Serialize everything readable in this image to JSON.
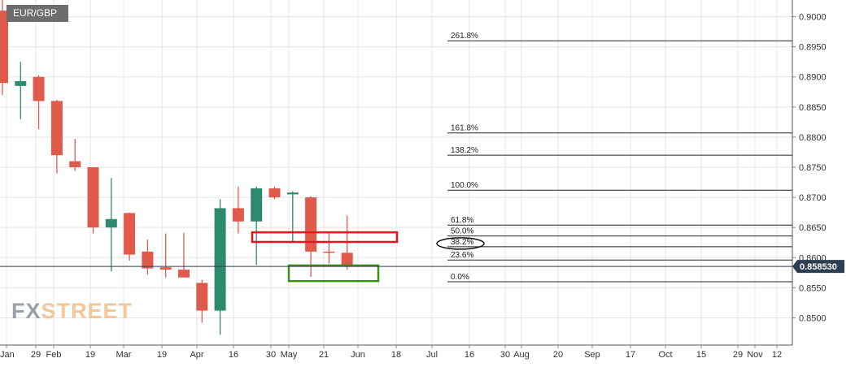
{
  "chart_data": {
    "type": "candlestick",
    "symbol": "EUR/GBP",
    "y_axis": {
      "min": 0.8475,
      "max": 0.9025,
      "ticks": [
        "0.9000",
        "0.8950",
        "0.8900",
        "0.8850",
        "0.8800",
        "0.8750",
        "0.8700",
        "0.8650",
        "0.8600",
        "0.8550",
        "0.8500"
      ],
      "position": "right"
    },
    "x_axis_labels": [
      "Jan",
      "29",
      "Feb",
      "19",
      "Mar",
      "19",
      "Apr",
      "16",
      "30",
      "May",
      "21",
      "Jun",
      "18",
      "Jul",
      "16",
      "30",
      "Aug",
      "20",
      "Sep",
      "17",
      "Oct",
      "15",
      "29",
      "Nov",
      "12"
    ],
    "current_price": "0.858530",
    "candles": [
      {
        "open": 0.901,
        "high": 0.903,
        "low": 0.887,
        "close": 0.889
      },
      {
        "open": 0.8885,
        "high": 0.8925,
        "low": 0.883,
        "close": 0.8893
      },
      {
        "open": 0.89,
        "high": 0.8903,
        "low": 0.8813,
        "close": 0.886
      },
      {
        "open": 0.886,
        "high": 0.8862,
        "low": 0.874,
        "close": 0.877
      },
      {
        "open": 0.876,
        "high": 0.8797,
        "low": 0.8744,
        "close": 0.875
      },
      {
        "open": 0.875,
        "high": 0.875,
        "low": 0.864,
        "close": 0.865
      },
      {
        "open": 0.865,
        "high": 0.8732,
        "low": 0.8577,
        "close": 0.8664
      },
      {
        "open": 0.8674,
        "high": 0.8675,
        "low": 0.8595,
        "close": 0.8605
      },
      {
        "open": 0.861,
        "high": 0.863,
        "low": 0.8572,
        "close": 0.8582
      },
      {
        "open": 0.8584,
        "high": 0.864,
        "low": 0.8567,
        "close": 0.858
      },
      {
        "open": 0.858,
        "high": 0.8641,
        "low": 0.8567,
        "close": 0.8567
      },
      {
        "open": 0.8558,
        "high": 0.8563,
        "low": 0.8492,
        "close": 0.8512
      },
      {
        "open": 0.8512,
        "high": 0.8697,
        "low": 0.8472,
        "close": 0.8682
      },
      {
        "open": 0.8682,
        "high": 0.8718,
        "low": 0.864,
        "close": 0.866
      },
      {
        "open": 0.866,
        "high": 0.8718,
        "low": 0.8588,
        "close": 0.8715
      },
      {
        "open": 0.8715,
        "high": 0.8718,
        "low": 0.8697,
        "close": 0.87
      },
      {
        "open": 0.8705,
        "high": 0.871,
        "low": 0.8625,
        "close": 0.8708
      },
      {
        "open": 0.87,
        "high": 0.8702,
        "low": 0.8568,
        "close": 0.861
      },
      {
        "open": 0.861,
        "high": 0.864,
        "low": 0.859,
        "close": 0.8608
      },
      {
        "open": 0.8608,
        "high": 0.867,
        "low": 0.858,
        "close": 0.8585
      }
    ],
    "fibonacci_levels": [
      {
        "label": "261.8%",
        "price": 0.896
      },
      {
        "label": "161.8%",
        "price": 0.8807
      },
      {
        "label": "138.2%",
        "price": 0.877
      },
      {
        "label": "100.0%",
        "price": 0.8712
      },
      {
        "label": "61.8%",
        "price": 0.8654
      },
      {
        "label": "50.0%",
        "price": 0.8636
      },
      {
        "label": "38.2%",
        "price": 0.8618
      },
      {
        "label": "23.6%",
        "price": 0.8596
      },
      {
        "label": "0.0%",
        "price": 0.856
      }
    ],
    "boxes": [
      {
        "name": "resistance-zone",
        "color": "#e8141c",
        "price_top": 0.8642,
        "price_bottom": 0.8626
      },
      {
        "name": "support-zone",
        "color": "#3f8f12",
        "price_top": 0.8587,
        "price_bottom": 0.8561
      }
    ],
    "highlight_ellipse_label": "38.2%",
    "grid": true,
    "colors": {
      "up": "#2e8a6e",
      "down": "#e05a4b",
      "grid": "#e3e6e8",
      "price_tag": "#2c3e50"
    }
  },
  "branding": {
    "logo_left": "FX",
    "logo_right": "STREET"
  }
}
